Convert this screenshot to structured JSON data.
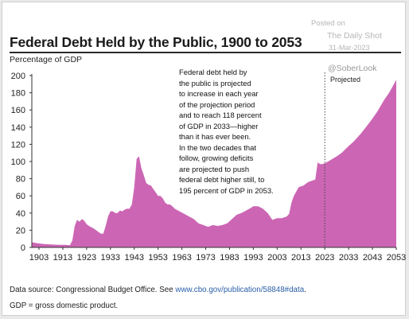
{
  "watermark": {
    "posted_on": "Posted on",
    "publisher": "The Daily Shot",
    "date": "31-Mar-2023",
    "handle": "@SoberLook"
  },
  "chart_data": {
    "type": "area",
    "title": "Federal Debt Held by the Public, 1900 to 2053",
    "ylabel": "Percentage of GDP",
    "xlabel": "",
    "xlim": [
      1900,
      2053
    ],
    "ylim": [
      0,
      200
    ],
    "x_ticks": [
      1903,
      1913,
      1923,
      1933,
      1943,
      1953,
      1963,
      1973,
      1983,
      1993,
      2003,
      2013,
      2023,
      2033,
      2043,
      2053
    ],
    "y_ticks": [
      0,
      20,
      40,
      60,
      80,
      100,
      120,
      140,
      160,
      180,
      200
    ],
    "grid": false,
    "fill_color": "#cc66b4",
    "projection_start": 2023,
    "projection_label": "Projected",
    "annotation": "Federal debt held by the public is projected to increase in each year of the projection period and to reach 118 percent of GDP in 2033—higher than it has ever been. In the two decades that follow, growing deficits are projected to push federal debt higher still, to 195 percent of GDP in 2053.",
    "series": [
      {
        "x": [
          1900,
          1902,
          1905,
          1908,
          1911,
          1914,
          1916,
          1917,
          1918,
          1919,
          1920,
          1921,
          1922,
          1923,
          1924,
          1926,
          1928,
          1929,
          1930,
          1931,
          1932,
          1933,
          1934,
          1935,
          1936,
          1937,
          1938,
          1939,
          1940,
          1941,
          1942,
          1943,
          1944,
          1945,
          1946,
          1947,
          1948,
          1949,
          1950,
          1951,
          1952,
          1953,
          1954,
          1955,
          1956,
          1957,
          1958,
          1959,
          1960,
          1962,
          1964,
          1966,
          1968,
          1970,
          1972,
          1974,
          1976,
          1978,
          1980,
          1982,
          1984,
          1986,
          1988,
          1990,
          1992,
          1993,
          1995,
          1997,
          1999,
          2001,
          2003,
          2005,
          2007,
          2008,
          2009,
          2010,
          2012,
          2014,
          2016,
          2018,
          2019,
          2020,
          2021,
          2022,
          2023,
          2025,
          2028,
          2030,
          2033,
          2035,
          2038,
          2040,
          2043,
          2045,
          2048,
          2050,
          2053
        ],
        "y": [
          6,
          5,
          4,
          3.5,
          3,
          3,
          2.5,
          8,
          25,
          32,
          30,
          33,
          31,
          27,
          25,
          22,
          18,
          16,
          16,
          25,
          36,
          42,
          42,
          40,
          40,
          43,
          42,
          44,
          45,
          45,
          50,
          70,
          103,
          106,
          92,
          84,
          75,
          73,
          72,
          68,
          64,
          60,
          60,
          57,
          52,
          50,
          50,
          48,
          45,
          42,
          39,
          36,
          33,
          28,
          26,
          24,
          26,
          25,
          26,
          28,
          33,
          38,
          40,
          43,
          46,
          48,
          48,
          45,
          40,
          32,
          34,
          34,
          36,
          39,
          52,
          60,
          70,
          72,
          76,
          78,
          79,
          99,
          97,
          97,
          98,
          101,
          106,
          110,
          118,
          123,
          132,
          139,
          150,
          158,
          172,
          180,
          195
        ]
      }
    ]
  },
  "annotation_lines": [
    "Federal debt held by",
    "the public is projected",
    "to increase in each year",
    "of the projection period",
    "and to reach 118 percent",
    "of GDP in 2033—higher",
    "than it has ever been.",
    "In the two decades that",
    "follow, growing deficits",
    "are projected to push",
    "federal debt higher still, to",
    "195 percent of GDP in 2053."
  ],
  "source": {
    "prefix": "Data source: Congressional Budget Office. See ",
    "link": "www.cbo.gov/publication/58848#data",
    "suffix": "."
  },
  "footnote": "GDP = gross domestic product."
}
